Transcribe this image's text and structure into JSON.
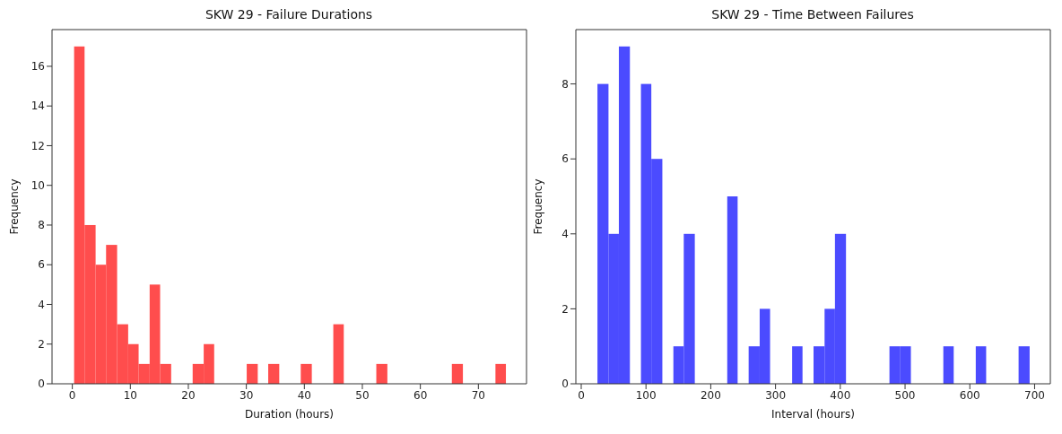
{
  "chart_data": [
    {
      "type": "histogram",
      "title": "SKW 29 - Failure Durations",
      "xlabel": "Duration (hours)",
      "ylabel": "Frequency",
      "color": "#ff4d4d",
      "bins": [
        0.3,
        2.1,
        4.0,
        5.8,
        7.7,
        9.6,
        11.4,
        13.3,
        15.1,
        17.0,
        20.7,
        22.6,
        24.4,
        30.0,
        31.9,
        33.7,
        35.6,
        39.3,
        41.2,
        44.9,
        46.7,
        52.3,
        54.2,
        65.3,
        67.2,
        72.8,
        74.6
      ],
      "values": [
        17,
        8,
        6,
        7,
        3,
        2,
        1,
        5,
        1,
        0,
        1,
        2,
        0,
        1,
        0,
        1,
        0,
        1,
        0,
        3,
        0,
        1,
        0,
        1,
        0,
        1
      ],
      "xlim": [
        -3.5,
        78.3
      ],
      "xticks": [
        0,
        10,
        20,
        30,
        40,
        50,
        60,
        70
      ],
      "ylim": [
        0,
        17.85
      ],
      "yticks": [
        0,
        2,
        4,
        6,
        8,
        10,
        12,
        14,
        16
      ],
      "grid": false,
      "legend": false
    },
    {
      "type": "histogram",
      "title": "SKW 29 - Time Between Failures",
      "xlabel": "Interval (hours)",
      "ylabel": "Frequency",
      "color": "#4b4bff",
      "bins": [
        25,
        42,
        58,
        75,
        92,
        108,
        125,
        142,
        158,
        175,
        225,
        241,
        258,
        275,
        291,
        325,
        341,
        358,
        375,
        391,
        408,
        475,
        491,
        508,
        558,
        574,
        608,
        624,
        674,
        691
      ],
      "values": [
        8,
        4,
        9,
        0,
        8,
        6,
        0,
        1,
        4,
        0,
        5,
        0,
        1,
        2,
        0,
        1,
        0,
        1,
        2,
        4,
        0,
        1,
        1,
        0,
        1,
        0,
        1,
        0,
        1
      ],
      "xlim": [
        -8.3,
        724.3
      ],
      "xticks": [
        0,
        100,
        200,
        300,
        400,
        500,
        600,
        700
      ],
      "ylim": [
        0,
        9.45
      ],
      "yticks": [
        0,
        2,
        4,
        6,
        8
      ],
      "grid": false,
      "legend": false
    }
  ]
}
